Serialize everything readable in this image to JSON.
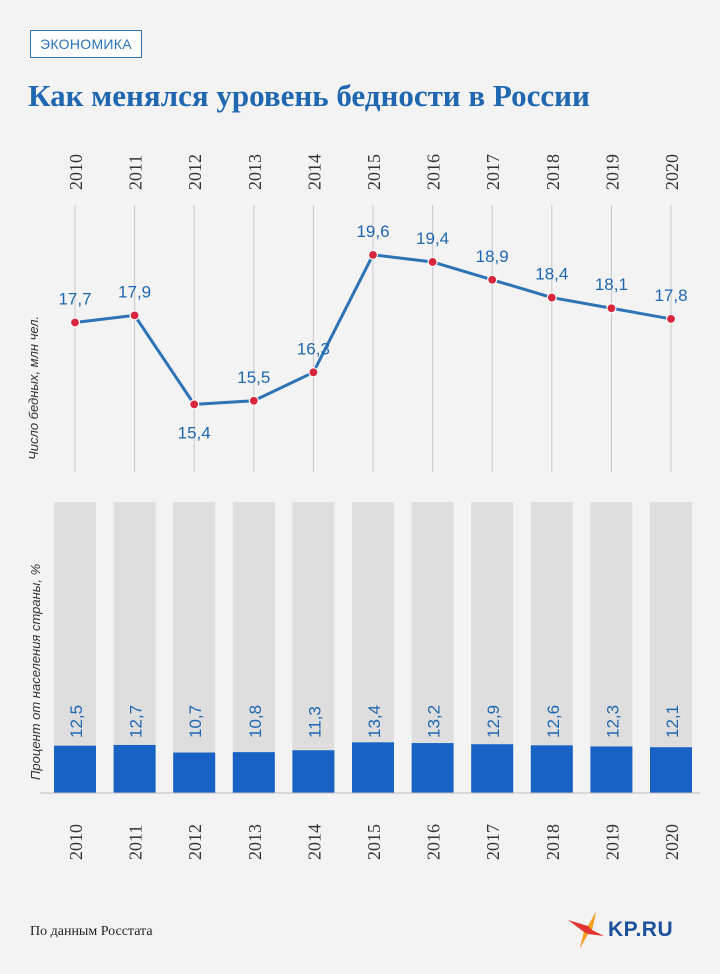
{
  "header": {
    "section_tag": "ЭКОНОМИКА",
    "title": "Как менялся уровень бедности в России"
  },
  "footer": {
    "source": "По данным Росстата",
    "logo_text": "KP.RU"
  },
  "colors": {
    "accent": "#1f67b0",
    "line": "#2d73b5",
    "marker": "#d7263d",
    "bar": "#1762c4",
    "bar_bg": "#dedede",
    "grid": "#c8c8c8",
    "axis_text": "#333333"
  },
  "chart_data": [
    {
      "type": "line",
      "title": "Как менялся уровень бедности в России",
      "ylabel": "Число бедных, млн чел.",
      "x": [
        "2010",
        "2011",
        "2012",
        "2013",
        "2014",
        "2015",
        "2016",
        "2017",
        "2018",
        "2019",
        "2020"
      ],
      "labels": [
        "17,7",
        "17,9",
        "15,4",
        "15,5",
        "16,3",
        "19,6",
        "19,4",
        "18,9",
        "18,4",
        "18,1",
        "17,8"
      ],
      "values": [
        17.7,
        17.9,
        15.4,
        15.5,
        16.3,
        19.6,
        19.4,
        18.9,
        18.4,
        18.1,
        17.8
      ],
      "ylim": [
        13.5,
        21
      ]
    },
    {
      "type": "bar",
      "ylabel": "Процент от населения страны, %",
      "categories": [
        "2010",
        "2011",
        "2012",
        "2013",
        "2014",
        "2015",
        "2016",
        "2017",
        "2018",
        "2019",
        "2020"
      ],
      "labels": [
        "12,5",
        "12,7",
        "10,7",
        "10,8",
        "11,3",
        "13,4",
        "13,2",
        "12,9",
        "12,6",
        "12,3",
        "12,1"
      ],
      "values": [
        12.5,
        12.7,
        10.7,
        10.8,
        11.3,
        13.4,
        13.2,
        12.9,
        12.6,
        12.3,
        12.1
      ],
      "ylim": [
        0,
        100
      ]
    }
  ]
}
